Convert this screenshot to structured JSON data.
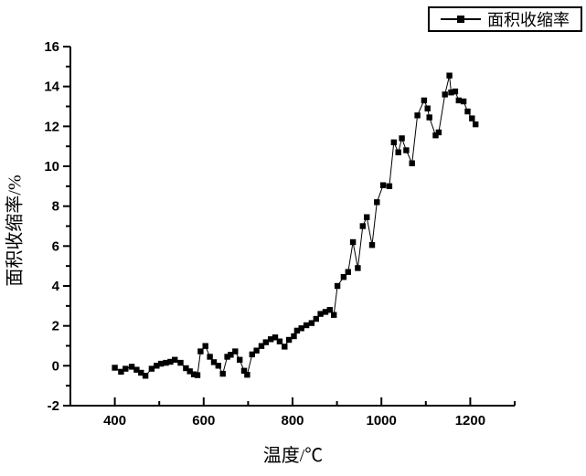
{
  "figure": {
    "background": "#ffffff"
  },
  "chart_data": {
    "type": "line",
    "title": "",
    "xlabel": "温度/℃",
    "ylabel": "面积收缩率/%",
    "xlim": [
      300,
      1300
    ],
    "ylim": [
      -2,
      16
    ],
    "xticks": [
      400,
      600,
      800,
      1000,
      1200
    ],
    "xminor": [
      500,
      700,
      900,
      1100,
      1300
    ],
    "yticks": [
      -2,
      0,
      2,
      4,
      6,
      8,
      10,
      12,
      14,
      16
    ],
    "yminor": [
      -1,
      1,
      3,
      5,
      7,
      9,
      11,
      13,
      15
    ],
    "grid": false,
    "legend": {
      "position": "top-right",
      "label": "面积收缩率"
    },
    "colors": {
      "line": "#000000",
      "marker": "#000000",
      "axis": "#000000",
      "background": "#ffffff"
    },
    "marker": "square",
    "series": [
      {
        "name": "面积收缩率",
        "x": [
          400,
          414,
          424,
          438,
          449,
          459,
          469,
          483,
          494,
          504,
          515,
          525,
          535,
          548,
          560,
          569,
          578,
          586,
          593,
          604,
          614,
          623,
          633,
          643,
          653,
          661,
          671,
          681,
          691,
          698,
          709,
          719,
          730,
          740,
          751,
          761,
          771,
          782,
          792,
          803,
          810,
          820,
          831,
          843,
          853,
          863,
          874,
          884,
          893,
          901,
          915,
          925,
          936,
          947,
          958,
          967,
          979,
          990,
          1004,
          1018,
          1028,
          1038,
          1046,
          1056,
          1069,
          1081,
          1096,
          1104,
          1108,
          1122,
          1129,
          1143,
          1153,
          1157,
          1166,
          1174,
          1185,
          1194,
          1204,
          1212
        ],
        "y": [
          -0.1,
          -0.3,
          -0.15,
          -0.05,
          -0.2,
          -0.35,
          -0.5,
          -0.15,
          0.0,
          0.1,
          0.15,
          0.2,
          0.3,
          0.15,
          -0.12,
          -0.28,
          -0.43,
          -0.47,
          0.72,
          0.99,
          0.45,
          0.18,
          0.0,
          -0.4,
          0.45,
          0.55,
          0.72,
          0.3,
          -0.25,
          -0.45,
          0.57,
          0.76,
          0.99,
          1.18,
          1.33,
          1.42,
          1.22,
          0.96,
          1.3,
          1.48,
          1.76,
          1.88,
          2.03,
          2.14,
          2.35,
          2.6,
          2.7,
          2.8,
          2.55,
          4.0,
          4.45,
          4.7,
          6.2,
          4.9,
          7.0,
          7.45,
          6.05,
          8.2,
          9.05,
          9.0,
          11.2,
          10.7,
          11.4,
          10.8,
          10.15,
          12.55,
          13.3,
          12.9,
          12.45,
          11.55,
          11.7,
          13.6,
          14.55,
          13.7,
          13.75,
          13.3,
          13.25,
          12.75,
          12.4,
          12.1
        ]
      }
    ]
  }
}
